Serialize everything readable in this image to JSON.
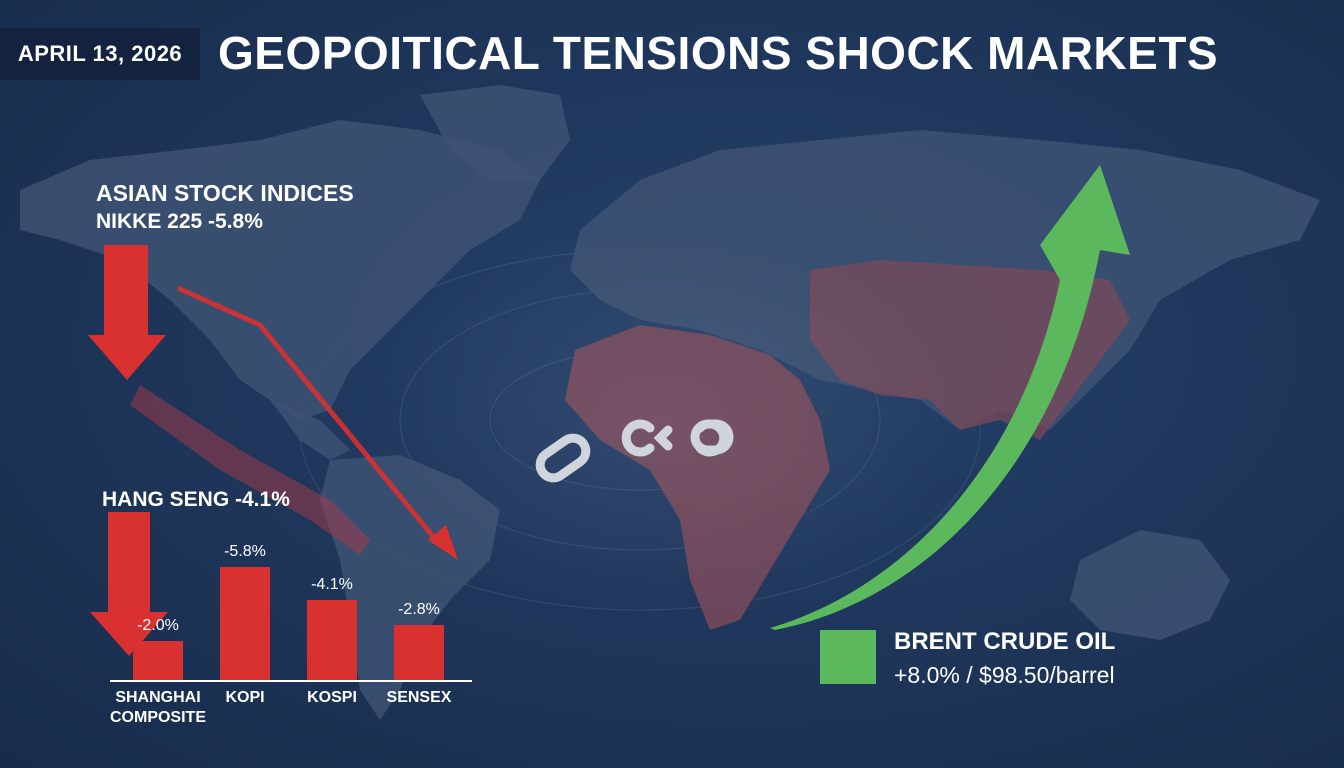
{
  "header": {
    "date": "APRIL 13, 2026",
    "headline": "GEOPOITICAL TENSIONS SHOCK MARKETS"
  },
  "annotations": {
    "section_title": "ASIAN STOCK INDICES",
    "nikkei": "NIKKE 225 -5.8%",
    "hang_seng": "HANG SENG -4.1%"
  },
  "oil": {
    "title": "BRENT CRUDE OIL",
    "value": "+8.0% / $98.50/barrel",
    "color": "#5cb85c"
  },
  "colors": {
    "decline": "#d93030",
    "rise": "#5cb85c",
    "map_land": "#3d5273",
    "map_highlight": "#7a4a5a",
    "background": "#1f375c"
  },
  "icons": [
    "broken-chain-icon",
    "down-arrow-icon",
    "up-arrow-icon"
  ],
  "chart_data": {
    "type": "bar",
    "categories": [
      "SHANGHAI COMPOSITE",
      "KOPI",
      "KOSPI",
      "SENSEX"
    ],
    "category_lines": [
      [
        "SHANGHAI",
        "COMPOSITE"
      ],
      [
        "KOPI"
      ],
      [
        "KOSPI"
      ],
      [
        "SENSEX"
      ]
    ],
    "values": [
      -2.0,
      -5.8,
      -4.1,
      -2.8
    ],
    "data_labels": [
      "-2.0%",
      "-5.8%",
      "-4.1%",
      "-2.8%"
    ],
    "ylim": [
      -6.5,
      0
    ],
    "grid": false,
    "legend": "none"
  }
}
